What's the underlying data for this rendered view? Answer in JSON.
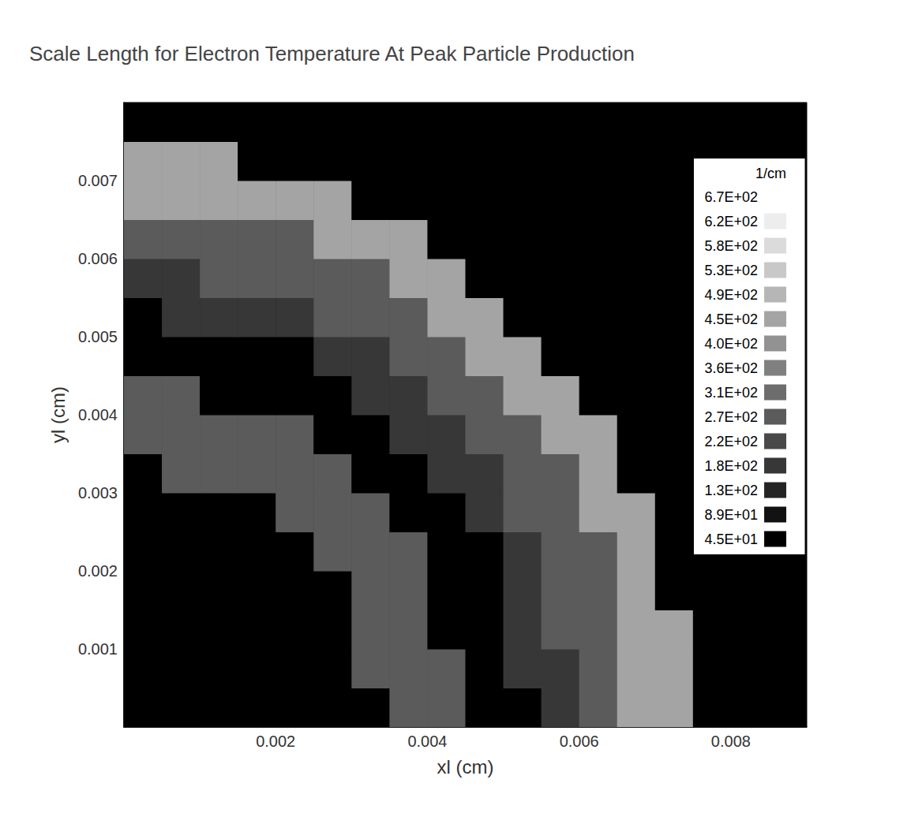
{
  "chart_data": {
    "type": "heatmap",
    "title": "Scale Length for Electron Temperature At Peak Particle Production",
    "x_label": "xl (cm)",
    "y_label": "yl (cm)",
    "xlim": [
      0,
      0.009
    ],
    "ylim": [
      0,
      0.008
    ],
    "xticks": [
      0.002,
      0.004,
      0.006,
      0.008
    ],
    "yticks": [
      0.001,
      0.002,
      0.003,
      0.004,
      0.005,
      0.006,
      0.007
    ],
    "grid": false,
    "heatmap": {
      "x": [
        0.00025,
        0.00075,
        0.00125,
        0.00175,
        0.00225,
        0.00275,
        0.00325,
        0.00375,
        0.00425,
        0.00475,
        0.00525,
        0.00575,
        0.00625,
        0.00675,
        0.00725,
        0.00775,
        0.00825,
        0.00875
      ],
      "y": [
        0.00025,
        0.00075,
        0.00125,
        0.00175,
        0.00225,
        0.00275,
        0.00325,
        0.00375,
        0.00425,
        0.00475,
        0.00525,
        0.00575,
        0.00625,
        0.00675,
        0.00725,
        0.00775
      ],
      "values": [
        [
          0,
          0,
          0,
          0,
          0,
          0,
          0,
          300,
          300,
          0,
          0,
          180,
          270,
          450,
          450,
          0,
          0,
          0
        ],
        [
          0,
          0,
          0,
          0,
          0,
          0,
          300,
          300,
          300,
          0,
          180,
          180,
          270,
          450,
          450,
          0,
          0,
          0
        ],
        [
          0,
          0,
          0,
          0,
          0,
          0,
          300,
          300,
          0,
          0,
          180,
          270,
          270,
          450,
          450,
          0,
          0,
          0
        ],
        [
          0,
          0,
          0,
          0,
          0,
          0,
          300,
          300,
          0,
          0,
          180,
          270,
          270,
          450,
          0,
          0,
          0,
          0
        ],
        [
          0,
          0,
          0,
          0,
          0,
          300,
          300,
          300,
          0,
          0,
          180,
          270,
          270,
          450,
          0,
          0,
          0,
          0
        ],
        [
          0,
          0,
          0,
          0,
          300,
          300,
          300,
          0,
          0,
          180,
          270,
          270,
          450,
          450,
          0,
          0,
          0,
          0
        ],
        [
          0,
          300,
          300,
          300,
          300,
          300,
          0,
          0,
          180,
          180,
          270,
          270,
          450,
          0,
          0,
          0,
          0,
          0
        ],
        [
          300,
          300,
          300,
          300,
          300,
          0,
          0,
          180,
          180,
          270,
          270,
          450,
          450,
          0,
          0,
          0,
          0,
          0
        ],
        [
          300,
          300,
          0,
          0,
          0,
          0,
          180,
          180,
          270,
          270,
          450,
          450,
          0,
          0,
          0,
          0,
          0,
          0
        ],
        [
          0,
          0,
          0,
          0,
          0,
          180,
          180,
          270,
          270,
          450,
          450,
          0,
          0,
          0,
          0,
          0,
          0,
          0
        ],
        [
          0,
          180,
          180,
          180,
          180,
          270,
          270,
          270,
          450,
          450,
          0,
          0,
          0,
          0,
          0,
          0,
          0,
          0
        ],
        [
          180,
          180,
          270,
          270,
          270,
          270,
          270,
          450,
          450,
          0,
          0,
          0,
          0,
          0,
          0,
          0,
          0,
          0
        ],
        [
          270,
          270,
          270,
          270,
          270,
          450,
          450,
          450,
          0,
          0,
          0,
          0,
          0,
          0,
          0,
          0,
          0,
          0
        ],
        [
          450,
          450,
          450,
          450,
          450,
          450,
          0,
          0,
          0,
          0,
          0,
          0,
          0,
          0,
          0,
          0,
          0,
          0
        ],
        [
          450,
          450,
          450,
          0,
          0,
          0,
          0,
          0,
          0,
          0,
          0,
          0,
          0,
          0,
          0,
          0,
          0,
          0
        ],
        [
          0,
          0,
          0,
          0,
          0,
          0,
          0,
          0,
          0,
          0,
          0,
          0,
          0,
          0,
          0,
          0,
          0,
          0
        ]
      ]
    },
    "colorbar": {
      "title": "1/cm",
      "range": [
        45,
        670
      ],
      "ticks": [
        {
          "value": 45,
          "label": "4.5E+01"
        },
        {
          "value": 89,
          "label": "8.9E+01"
        },
        {
          "value": 130,
          "label": "1.3E+02"
        },
        {
          "value": 180,
          "label": "1.8E+02"
        },
        {
          "value": 220,
          "label": "2.2E+02"
        },
        {
          "value": 270,
          "label": "2.7E+02"
        },
        {
          "value": 310,
          "label": "3.1E+02"
        },
        {
          "value": 360,
          "label": "3.6E+02"
        },
        {
          "value": 400,
          "label": "4.0E+02"
        },
        {
          "value": 450,
          "label": "4.5E+02"
        },
        {
          "value": 490,
          "label": "4.9E+02"
        },
        {
          "value": 530,
          "label": "5.3E+02"
        },
        {
          "value": 580,
          "label": "5.8E+02"
        },
        {
          "value": 620,
          "label": "6.2E+02"
        },
        {
          "value": 670,
          "label": "6.7E+02"
        }
      ]
    }
  }
}
